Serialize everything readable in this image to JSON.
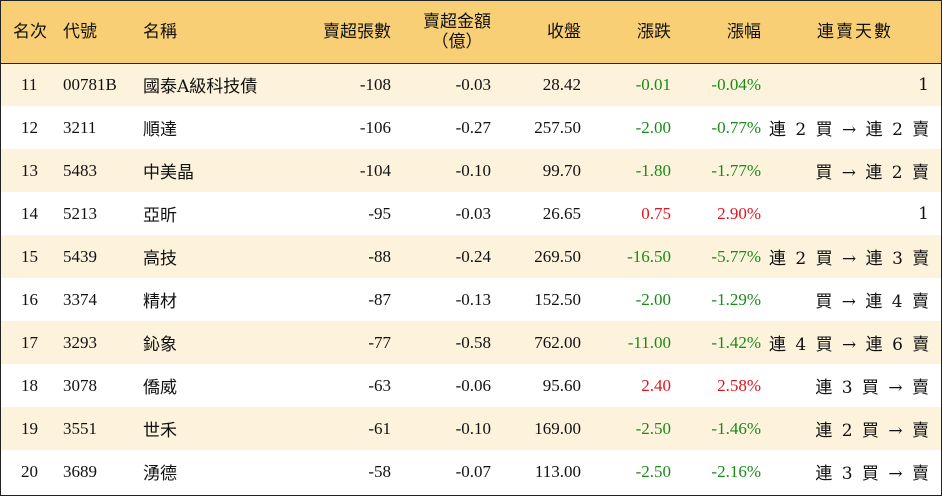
{
  "colors": {
    "header_bg": "#f8cf74",
    "row_alt_bg": "#fdf2dc",
    "row_bg": "#ffffff",
    "up": "#e0141e",
    "down": "#1a8a1a"
  },
  "headers": {
    "rank": "名次",
    "code": "代號",
    "name": "名稱",
    "net_sell_lots": "賣超張數",
    "net_sell_amount_line1": "賣超金額",
    "net_sell_amount_line2": "（億）",
    "close": "收盤",
    "change": "漲跌",
    "pct_change": "漲幅",
    "streak": "連賣天數"
  },
  "rows": [
    {
      "rank": "11",
      "code": "00781B",
      "name": "國泰A級科技債",
      "lots": "-108",
      "amount": "-0.03",
      "close": "28.42",
      "change": "-0.01",
      "pct": "-0.04%",
      "dir": "down",
      "streak": "1"
    },
    {
      "rank": "12",
      "code": "3211",
      "name": "順達",
      "lots": "-106",
      "amount": "-0.27",
      "close": "257.50",
      "change": "-2.00",
      "pct": "-0.77%",
      "dir": "down",
      "streak": "連 2 買 → 連 2 賣"
    },
    {
      "rank": "13",
      "code": "5483",
      "name": "中美晶",
      "lots": "-104",
      "amount": "-0.10",
      "close": "99.70",
      "change": "-1.80",
      "pct": "-1.77%",
      "dir": "down",
      "streak": "買 → 連 2 賣"
    },
    {
      "rank": "14",
      "code": "5213",
      "name": "亞昕",
      "lots": "-95",
      "amount": "-0.03",
      "close": "26.65",
      "change": "0.75",
      "pct": "2.90%",
      "dir": "up",
      "streak": "1"
    },
    {
      "rank": "15",
      "code": "5439",
      "name": "高技",
      "lots": "-88",
      "amount": "-0.24",
      "close": "269.50",
      "change": "-16.50",
      "pct": "-5.77%",
      "dir": "down",
      "streak": "連 2 買 → 連 3 賣"
    },
    {
      "rank": "16",
      "code": "3374",
      "name": "精材",
      "lots": "-87",
      "amount": "-0.13",
      "close": "152.50",
      "change": "-2.00",
      "pct": "-1.29%",
      "dir": "down",
      "streak": "買 → 連 4 賣"
    },
    {
      "rank": "17",
      "code": "3293",
      "name": "鈊象",
      "lots": "-77",
      "amount": "-0.58",
      "close": "762.00",
      "change": "-11.00",
      "pct": "-1.42%",
      "dir": "down",
      "streak": "連 4 買 → 連 6 賣"
    },
    {
      "rank": "18",
      "code": "3078",
      "name": "僑威",
      "lots": "-63",
      "amount": "-0.06",
      "close": "95.60",
      "change": "2.40",
      "pct": "2.58%",
      "dir": "up",
      "streak": "連 3 買 → 賣"
    },
    {
      "rank": "19",
      "code": "3551",
      "name": "世禾",
      "lots": "-61",
      "amount": "-0.10",
      "close": "169.00",
      "change": "-2.50",
      "pct": "-1.46%",
      "dir": "down",
      "streak": "連 2 買 → 賣"
    },
    {
      "rank": "20",
      "code": "3689",
      "name": "湧德",
      "lots": "-58",
      "amount": "-0.07",
      "close": "113.00",
      "change": "-2.50",
      "pct": "-2.16%",
      "dir": "down",
      "streak": "連 3 買 → 賣"
    }
  ]
}
